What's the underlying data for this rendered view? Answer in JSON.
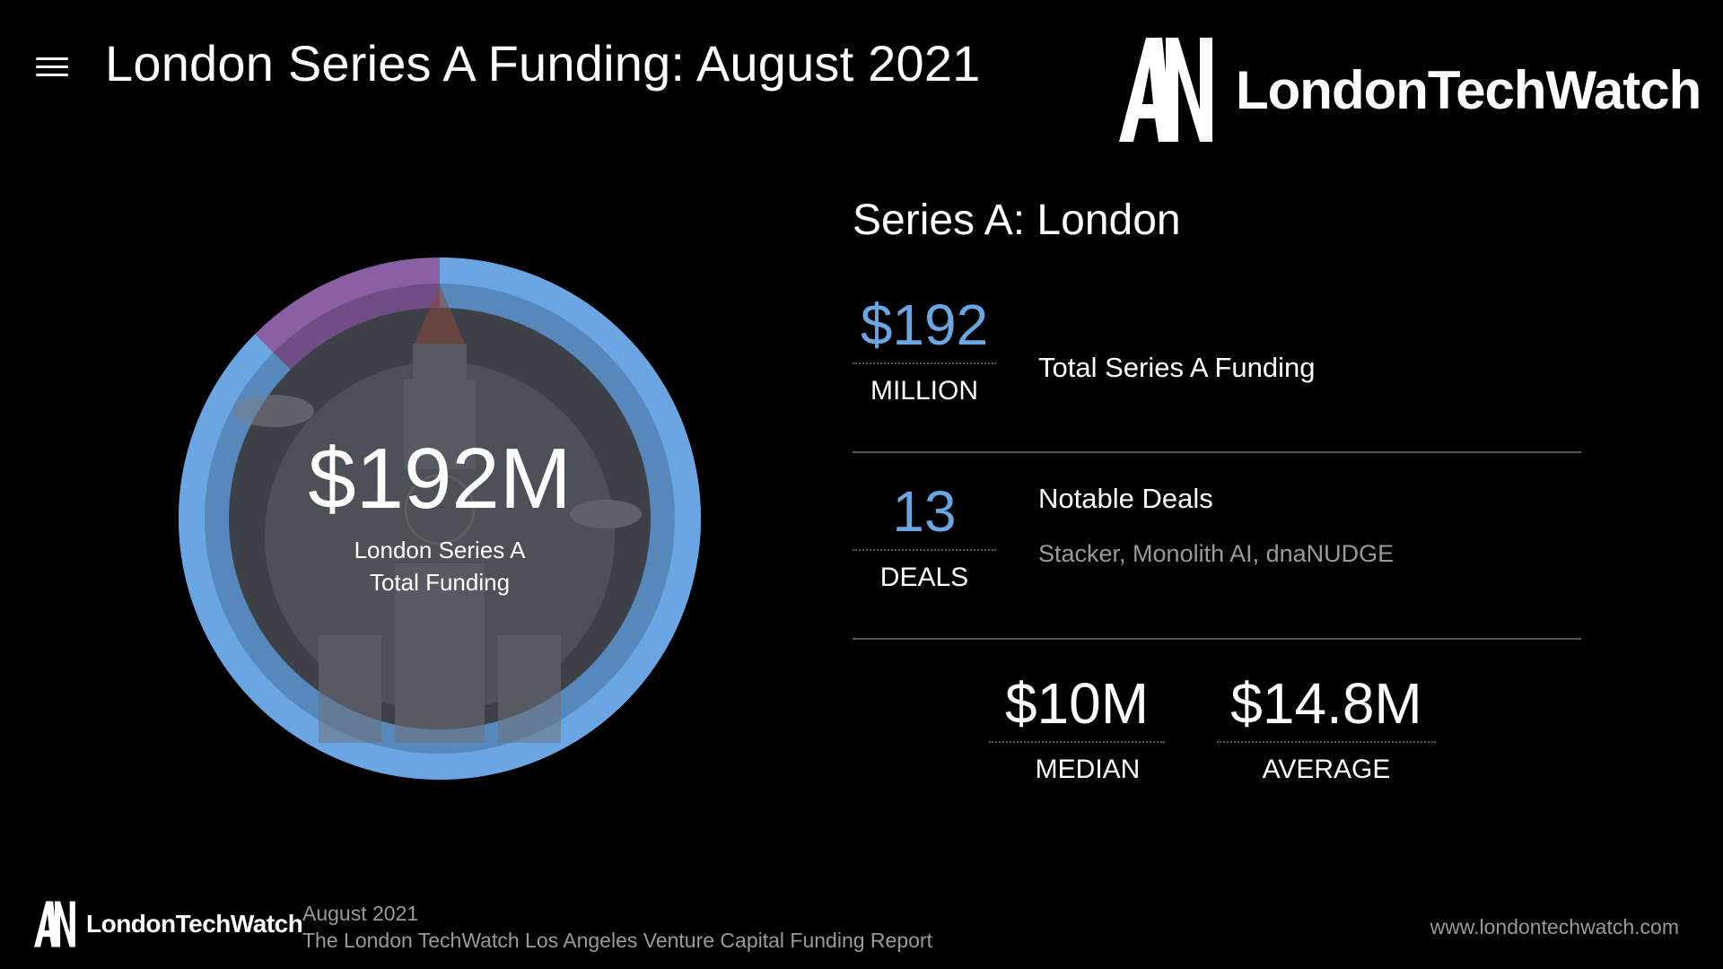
{
  "header": {
    "title": "London Series A Funding: August 2021",
    "logo_text": "LondonTechWatch",
    "logo_mark": "AN"
  },
  "chart_data": {
    "type": "pie",
    "title": "",
    "center_value": "$192M",
    "center_label": "London Series A Total Funding",
    "slices": [
      {
        "value": 0.875,
        "color": "#6aa6e4"
      },
      {
        "value": 0.125,
        "color": "#8a5fa3"
      }
    ],
    "ring_background": "#4a4d53",
    "center_background": "#5b5f66"
  },
  "stats": {
    "section_title": "Series A: London",
    "total": {
      "value": "$192",
      "unit": "MILLION",
      "description": "Total Series A Funding"
    },
    "deals": {
      "value": "13",
      "unit": "DEALS",
      "description": "Notable Deals",
      "names": "Stacker, Monolith AI, dnaNUDGE"
    },
    "median": {
      "value": "$10M",
      "label": "MEDIAN"
    },
    "average": {
      "value": "$14.8M",
      "label": "AVERAGE"
    }
  },
  "footer": {
    "logo_text": "LondonTechWatch",
    "date": "August 2021",
    "report": "The London TechWatch Los Angeles Venture Capital Funding Report",
    "url": "www.londontechwatch.com"
  },
  "colors": {
    "accent": "#6aa6e4",
    "secondary": "#8a5fa3",
    "background": "#000000"
  },
  "icons": {
    "menu": "menu-icon",
    "background_art": "big-ben-illustration"
  }
}
